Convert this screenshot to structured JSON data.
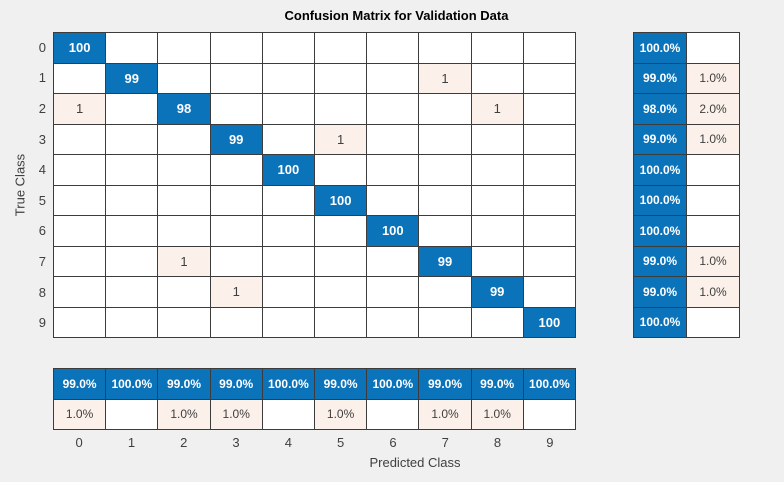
{
  "title": "Confusion Matrix for Validation Data",
  "axes": {
    "x_label": "Predicted Class",
    "y_label": "True Class"
  },
  "colors": {
    "background": "#F0F0F0",
    "diagonal_blue": "#0A73BA",
    "off_diagonal_tint": "#FBF0EA",
    "grid_line": "#3C3C3C",
    "dark_text": "#3F3F3F",
    "light_text": "#FFFFFF",
    "title_text": "#000000"
  },
  "chart_data": {
    "type": "heatmap",
    "title": "Confusion Matrix for Validation Data",
    "xlabel": "Predicted Class",
    "ylabel": "True Class",
    "classes": [
      "0",
      "1",
      "2",
      "3",
      "4",
      "5",
      "6",
      "7",
      "8",
      "9"
    ],
    "matrix": [
      [
        100,
        0,
        0,
        0,
        0,
        0,
        0,
        0,
        0,
        0
      ],
      [
        0,
        99,
        0,
        0,
        0,
        0,
        0,
        1,
        0,
        0
      ],
      [
        1,
        0,
        98,
        0,
        0,
        0,
        0,
        0,
        1,
        0
      ],
      [
        0,
        0,
        0,
        99,
        0,
        1,
        0,
        0,
        0,
        0
      ],
      [
        0,
        0,
        0,
        0,
        100,
        0,
        0,
        0,
        0,
        0
      ],
      [
        0,
        0,
        0,
        0,
        0,
        100,
        0,
        0,
        0,
        0
      ],
      [
        0,
        0,
        0,
        0,
        0,
        0,
        100,
        0,
        0,
        0
      ],
      [
        0,
        0,
        1,
        0,
        0,
        0,
        0,
        99,
        0,
        0
      ],
      [
        0,
        0,
        0,
        1,
        0,
        0,
        0,
        0,
        99,
        0
      ],
      [
        0,
        0,
        0,
        0,
        0,
        0,
        0,
        0,
        0,
        100
      ]
    ],
    "row_summary": {
      "correct": [
        "100.0%",
        "99.0%",
        "98.0%",
        "99.0%",
        "100.0%",
        "100.0%",
        "100.0%",
        "99.0%",
        "99.0%",
        "100.0%"
      ],
      "incorrect": [
        "",
        "1.0%",
        "2.0%",
        "1.0%",
        "",
        "",
        "",
        "1.0%",
        "1.0%",
        ""
      ]
    },
    "column_summary": {
      "correct": [
        "99.0%",
        "100.0%",
        "99.0%",
        "99.0%",
        "100.0%",
        "99.0%",
        "100.0%",
        "99.0%",
        "99.0%",
        "100.0%"
      ],
      "incorrect": [
        "1.0%",
        "",
        "1.0%",
        "1.0%",
        "",
        "1.0%",
        "",
        "1.0%",
        "1.0%",
        ""
      ]
    }
  }
}
